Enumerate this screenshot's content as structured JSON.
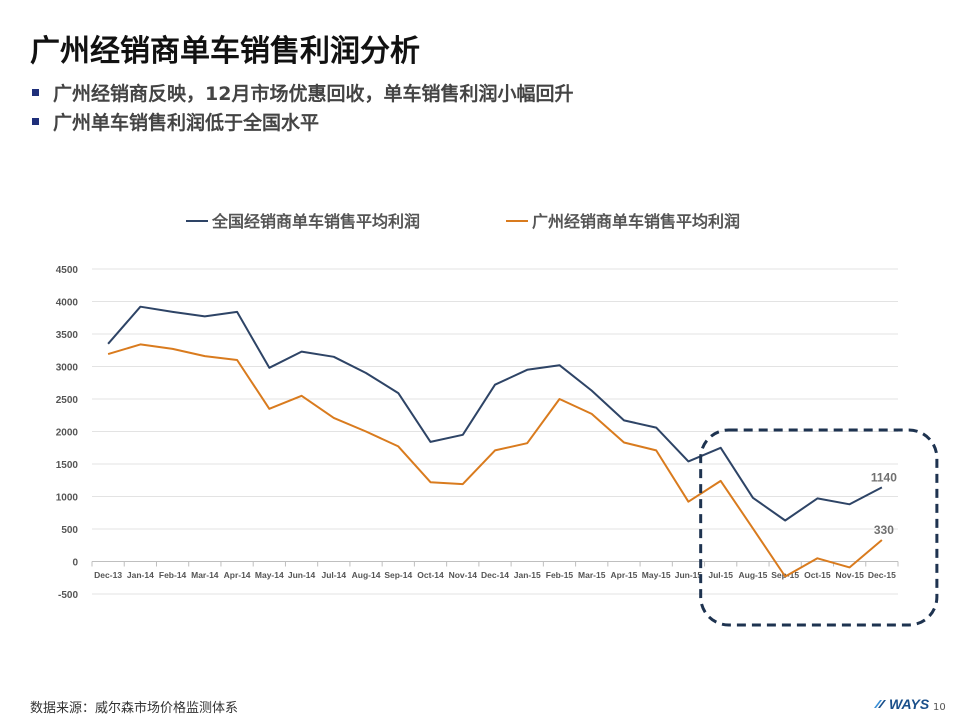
{
  "slide": {
    "title": "广州经销商单车销售利润分析",
    "bullets": [
      "广州经销商反映，12月市场优惠回收，单车销售利润小幅回升",
      "广州单车销售利润低于全国水平"
    ],
    "source": "数据来源：威尔森市场价格监测体系",
    "logo_text": "WAYS",
    "page_number": "10",
    "colors": {
      "bullet": "#1f2f7a",
      "national": "#2e4466",
      "guangzhou": "#d97b1e",
      "highlight_box": "#1e3350"
    }
  },
  "chart_data": {
    "type": "line",
    "categories": [
      "Dec-13",
      "Jan-14",
      "Feb-14",
      "Mar-14",
      "Apr-14",
      "May-14",
      "Jun-14",
      "Jul-14",
      "Aug-14",
      "Sep-14",
      "Oct-14",
      "Nov-14",
      "Dec-14",
      "Jan-15",
      "Feb-15",
      "Mar-15",
      "Apr-15",
      "May-15",
      "Jun-15",
      "Jul-15",
      "Aug-15",
      "Sep-15",
      "Oct-15",
      "Nov-15",
      "Dec-15"
    ],
    "series": [
      {
        "name": "全国经销商单车销售平均利润",
        "color": "#2e4466",
        "values": [
          3350,
          3920,
          3840,
          3770,
          3840,
          2980,
          3230,
          3150,
          2900,
          2590,
          1840,
          1950,
          2720,
          2950,
          3020,
          2630,
          2170,
          2060,
          1540,
          1750,
          980,
          630,
          970,
          880,
          1140
        ]
      },
      {
        "name": "广州经销商单车销售平均利润",
        "color": "#d97b1e",
        "values": [
          3190,
          3340,
          3270,
          3160,
          3100,
          2350,
          2550,
          2210,
          2000,
          1770,
          1220,
          1190,
          1710,
          1820,
          2500,
          2270,
          1830,
          1710,
          920,
          1240,
          510,
          -230,
          50,
          -90,
          330
        ]
      }
    ],
    "ylim": [
      -500,
      4500
    ],
    "yticks": [
      -500,
      0,
      500,
      1000,
      1500,
      2000,
      2500,
      3000,
      3500,
      4000,
      4500
    ],
    "ytick_labels": [
      "-500",
      "0",
      "500",
      "1000",
      "1500",
      "2000",
      "2500",
      "3000",
      "3500",
      "4000",
      "4500"
    ],
    "data_labels": [
      {
        "series": 0,
        "index": 24,
        "text": "1140"
      },
      {
        "series": 1,
        "index": 24,
        "text": "330"
      }
    ],
    "grid": true,
    "legend": "top",
    "highlight": {
      "from_index": 19,
      "to_index": 24,
      "style": "dashed rounded box"
    }
  }
}
